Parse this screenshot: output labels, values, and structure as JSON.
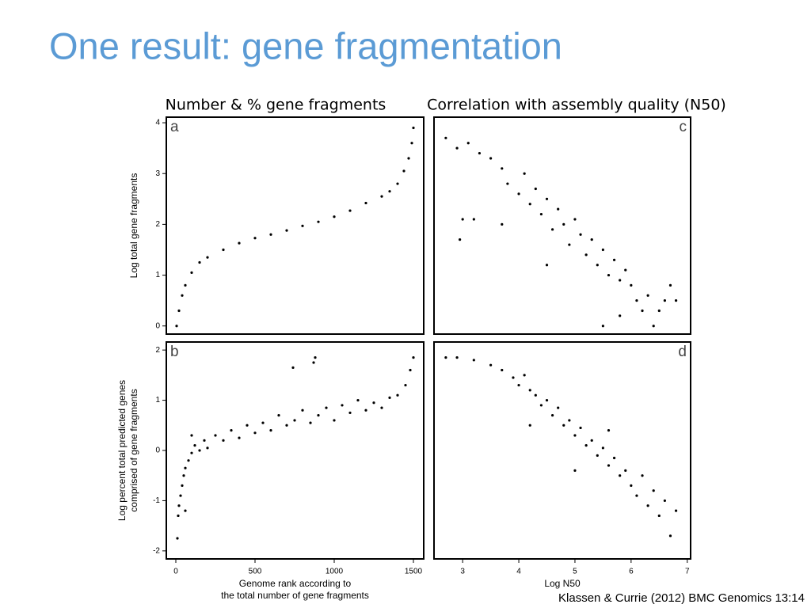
{
  "title": "One result: gene fragmentation",
  "column_headers": [
    "Number & % gene fragments",
    "Correlation with assembly quality (N50)"
  ],
  "citation": "Klassen & Currie (2012) BMC Genomics 13:14",
  "chart_data": [
    {
      "type": "scatter",
      "label": "a",
      "x": [
        5,
        20,
        40,
        60,
        100,
        150,
        200,
        300,
        400,
        500,
        600,
        700,
        800,
        900,
        1000,
        1100,
        1200,
        1300,
        1350,
        1400,
        1440,
        1470,
        1490,
        1500
      ],
      "values": [
        0,
        0.3,
        0.6,
        0.8,
        1.05,
        1.25,
        1.35,
        1.5,
        1.63,
        1.73,
        1.8,
        1.88,
        1.97,
        2.05,
        2.15,
        2.27,
        2.42,
        2.55,
        2.65,
        2.8,
        3.05,
        3.3,
        3.6,
        3.9
      ],
      "xlim": [
        -60,
        1565
      ],
      "ylim": [
        -0.16,
        4.11
      ],
      "yticks": [
        0,
        1,
        2,
        3,
        4
      ],
      "ylabel": [
        "Log total gene fragments"
      ]
    },
    {
      "type": "scatter",
      "label": "b",
      "x": [
        10,
        15,
        20,
        30,
        40,
        50,
        60,
        80,
        100,
        120,
        150,
        180,
        200,
        250,
        300,
        350,
        400,
        450,
        500,
        550,
        600,
        650,
        700,
        750,
        800,
        850,
        870,
        900,
        950,
        1000,
        1050,
        1100,
        1150,
        1200,
        1250,
        1300,
        1350,
        1400,
        1450,
        1480,
        1500,
        740,
        880,
        100,
        60
      ],
      "values": [
        -1.75,
        -1.3,
        -1.1,
        -0.9,
        -0.7,
        -0.5,
        -0.35,
        -0.2,
        -0.05,
        0.1,
        0.0,
        0.2,
        0.05,
        0.3,
        0.2,
        0.4,
        0.25,
        0.5,
        0.35,
        0.55,
        0.4,
        0.7,
        0.5,
        0.6,
        0.8,
        0.55,
        1.75,
        0.7,
        0.85,
        0.6,
        0.9,
        0.75,
        1.0,
        0.8,
        0.95,
        0.85,
        1.05,
        1.1,
        1.3,
        1.6,
        1.85,
        1.65,
        1.85,
        0.3,
        -1.2
      ],
      "xlim": [
        -60,
        1565
      ],
      "ylim": [
        -2.16,
        2.16
      ],
      "xticks": [
        0,
        500,
        1000,
        1500
      ],
      "yticks": [
        -2,
        -1,
        0,
        1,
        2
      ],
      "ylabel": [
        "Log percent total predicted genes",
        "comprised of gene fragments"
      ],
      "xlabel": [
        "Genome rank according to",
        "the total number of gene fragments"
      ]
    },
    {
      "type": "scatter",
      "label": "c",
      "x": [
        2.7,
        2.9,
        3.1,
        3.3,
        3.5,
        3.0,
        3.2,
        2.95,
        3.7,
        3.8,
        4.0,
        4.1,
        4.2,
        4.3,
        4.4,
        4.5,
        4.6,
        4.7,
        4.8,
        4.9,
        5.0,
        5.1,
        5.2,
        5.3,
        5.4,
        5.5,
        5.6,
        5.7,
        5.8,
        5.9,
        6.0,
        6.1,
        6.2,
        6.3,
        6.4,
        6.5,
        6.6,
        6.7,
        6.8,
        5.5,
        5.8,
        3.7,
        4.5
      ],
      "values": [
        3.7,
        3.5,
        3.6,
        3.4,
        3.3,
        2.1,
        2.1,
        1.7,
        3.1,
        2.8,
        2.6,
        3.0,
        2.4,
        2.7,
        2.2,
        2.5,
        1.9,
        2.3,
        2.0,
        1.6,
        2.1,
        1.8,
        1.4,
        1.7,
        1.2,
        1.5,
        1.0,
        1.3,
        0.9,
        1.1,
        0.8,
        0.5,
        0.3,
        0.6,
        0.0,
        0.3,
        0.5,
        0.8,
        0.5,
        0.0,
        0.2,
        2.0,
        1.2
      ],
      "xlim": [
        2.49,
        7.06
      ],
      "ylim": [
        -0.16,
        4.11
      ]
    },
    {
      "type": "scatter",
      "label": "d",
      "x": [
        2.7,
        2.9,
        3.2,
        3.5,
        3.7,
        3.9,
        4.0,
        4.1,
        4.2,
        4.3,
        4.4,
        4.5,
        4.6,
        4.7,
        4.8,
        4.9,
        5.0,
        5.1,
        5.2,
        5.3,
        5.4,
        5.5,
        5.6,
        5.7,
        5.8,
        5.9,
        6.0,
        6.1,
        6.2,
        6.3,
        6.4,
        6.5,
        6.6,
        6.7,
        6.8,
        5.0,
        4.2,
        5.6
      ],
      "values": [
        1.85,
        1.85,
        1.8,
        1.7,
        1.6,
        1.45,
        1.3,
        1.5,
        1.2,
        1.1,
        0.9,
        1.0,
        0.7,
        0.85,
        0.5,
        0.6,
        0.3,
        0.45,
        0.1,
        0.2,
        -0.1,
        0.05,
        -0.3,
        -0.15,
        -0.5,
        -0.4,
        -0.7,
        -0.9,
        -0.5,
        -1.1,
        -0.8,
        -1.3,
        -1.0,
        -1.7,
        -1.2,
        -0.4,
        0.5,
        0.4
      ],
      "xlim": [
        2.49,
        7.06
      ],
      "ylim": [
        -2.16,
        2.16
      ],
      "xticks": [
        3,
        4,
        5,
        6,
        7
      ],
      "xlabel": [
        "Log N50"
      ]
    }
  ]
}
